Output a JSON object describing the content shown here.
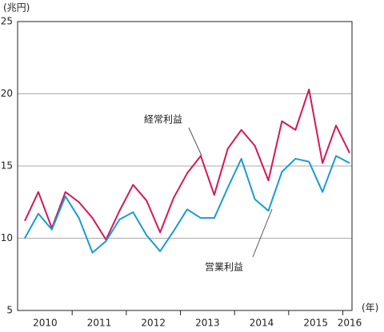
{
  "chart_data": {
    "type": "line",
    "y_unit_label": "(兆円)",
    "x_unit_label": "(年)",
    "categories": [
      null,
      null,
      null,
      null,
      null,
      null,
      null,
      null,
      null,
      null,
      null,
      null,
      null,
      null,
      null,
      null,
      null,
      null,
      null,
      null,
      null,
      null,
      null,
      null,
      null
    ],
    "year_labels": [
      "2010",
      "2011",
      "2012",
      "2013",
      "2014",
      "2015",
      "2016"
    ],
    "series": [
      {
        "name": "経常利益",
        "color": "#d6175a",
        "values": [
          11.2,
          13.2,
          10.7,
          13.2,
          12.5,
          11.4,
          9.9,
          11.9,
          13.7,
          12.6,
          10.4,
          12.8,
          14.5,
          15.7,
          13.0,
          16.2,
          17.5,
          16.4,
          14.0,
          18.1,
          17.5,
          20.3,
          15.2,
          17.8,
          15.9
        ]
      },
      {
        "name": "営業利益",
        "color": "#1a9ad6",
        "values": [
          10.0,
          11.7,
          10.6,
          12.9,
          11.4,
          9.0,
          9.8,
          11.3,
          11.8,
          10.2,
          9.1,
          10.5,
          12.0,
          11.4,
          11.4,
          13.5,
          15.5,
          12.7,
          11.9,
          14.6,
          15.5,
          15.3,
          13.2,
          15.7,
          15.2
        ]
      }
    ],
    "ylim": [
      5,
      25
    ],
    "yticks": [
      5,
      10,
      15,
      20,
      25
    ],
    "grid": true
  }
}
